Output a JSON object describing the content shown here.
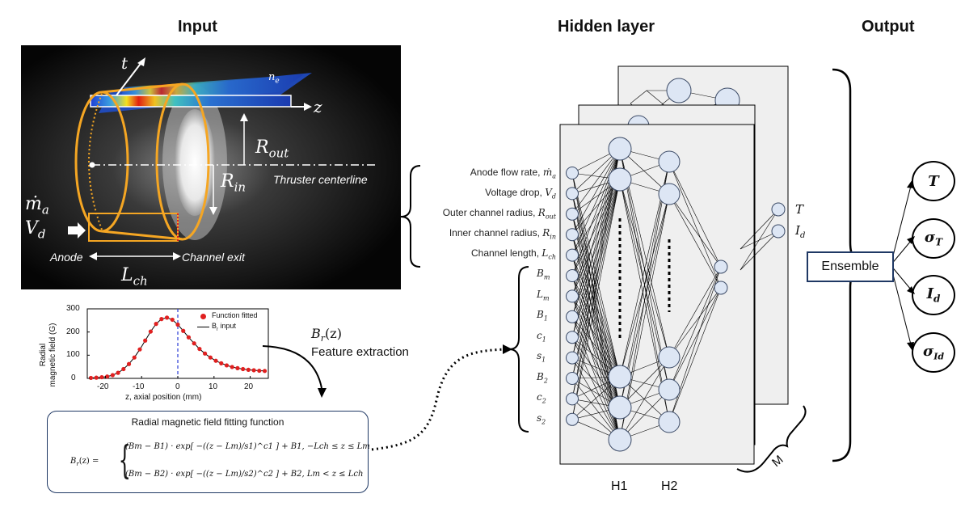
{
  "headers": {
    "input": "Input",
    "hidden": "Hidden layer",
    "output": "Output"
  },
  "photo": {
    "t_axis": "t",
    "z_axis": "z",
    "ne": "n",
    "ne_sub": "e",
    "r_out": "R",
    "r_out_sub": "out",
    "r_in": "R",
    "r_in_sub": "in",
    "centerline": "Thruster centerline",
    "m_dot": "ṁ",
    "m_dot_sub": "a",
    "vd": "V",
    "vd_sub": "d",
    "anode": "Anode",
    "channel_exit": "Channel exit",
    "lch": "L",
    "lch_sub": "ch"
  },
  "br_chart": {
    "ylabel_line1": "Radial",
    "ylabel_line2": "magnetic field (G)",
    "xlabel": "z, axial position (mm)",
    "legend_fitted": "Function fitted",
    "legend_input": "B",
    "legend_input_sub": "r",
    "legend_input_suffix": " input",
    "yticks": [
      "0",
      "100",
      "200",
      "300"
    ],
    "xticks": [
      "-20",
      "-10",
      "0",
      "10",
      "20"
    ]
  },
  "chart_data": {
    "type": "scatter",
    "xlabel": "z, axial position (mm)",
    "ylabel": "Radial magnetic field (G)",
    "xlim": [
      -25,
      25
    ],
    "ylim": [
      0,
      300
    ],
    "x": [
      -24,
      -22.5,
      -21,
      -19.5,
      -18,
      -16.5,
      -15,
      -13.5,
      -12,
      -10.5,
      -9,
      -7.5,
      -6,
      -4.5,
      -3,
      -1.5,
      0,
      1.5,
      3,
      4.5,
      6,
      7.5,
      9,
      10.5,
      12,
      13.5,
      15,
      16.5,
      18,
      19.5,
      21,
      22.5,
      24
    ],
    "series": [
      {
        "name": "Function fitted",
        "values": [
          2,
          3,
          5,
          8,
          14,
          24,
          40,
          62,
          90,
          125,
          163,
          202,
          235,
          256,
          262,
          253,
          232,
          205,
          177,
          151,
          127,
          107,
          90,
          76,
          65,
          56,
          49,
          44,
          40,
          37,
          35,
          33,
          32
        ]
      }
    ],
    "marker_line_x": 0
  },
  "br_annotation": {
    "br": "B",
    "br_sub": "r",
    "br_arg": "(z)",
    "feature": "Feature extraction"
  },
  "fit_box": {
    "title": "Radial magnetic field fitting function",
    "lhs": "B",
    "lhs_sub": "r",
    "lhs_arg": "(z) =",
    "case1": "(B",
    "case1_full": "(Bm − B1) · exp[ −((z − Lm)/s1)^c1 ] + B1,   −Lch ≤ z ≤ Lm",
    "case2_full": "(Bm − B2) · exp[ −((z − Lm)/s2)^c2 ] + B2,   Lm < z ≤ Lch"
  },
  "features_top": [
    {
      "label": "Anode flow rate, ",
      "var": "ṁ",
      "sub": "a"
    },
    {
      "label": "Voltage drop, ",
      "var": "V",
      "sub": "d"
    },
    {
      "label": "Outer channel radius, ",
      "var": "R",
      "sub": "out"
    },
    {
      "label": "Inner channel radius, ",
      "var": "R",
      "sub": "in"
    },
    {
      "label": "Channel length, ",
      "var": "L",
      "sub": "ch"
    }
  ],
  "features_bottom": [
    {
      "var": "B",
      "sub": "m"
    },
    {
      "var": "L",
      "sub": "m"
    },
    {
      "var": "B",
      "sub": "1"
    },
    {
      "var": "c",
      "sub": "1"
    },
    {
      "var": "s",
      "sub": "1"
    },
    {
      "var": "B",
      "sub": "2"
    },
    {
      "var": "c",
      "sub": "2"
    },
    {
      "var": "s",
      "sub": "2"
    }
  ],
  "network": {
    "h1": "H1",
    "h2": "H2",
    "m": "M",
    "out_t": "T",
    "out_id": "I",
    "out_id_sub": "d"
  },
  "ensemble": "Ensemble",
  "outputs": [
    {
      "var": "T",
      "sub": ""
    },
    {
      "var": "σ",
      "sub": "T"
    },
    {
      "var": "I",
      "sub": "d"
    },
    {
      "var": "σ",
      "sub": "Id"
    }
  ],
  "colors": {
    "box_border": "#1f3864",
    "panel_fill": "#efefef",
    "node_fill": "#dde6f4",
    "node_stroke": "#3b4a66",
    "fitted_marker": "#e02020",
    "zero_line": "#2a3bd6",
    "ring": "#f5a623"
  }
}
